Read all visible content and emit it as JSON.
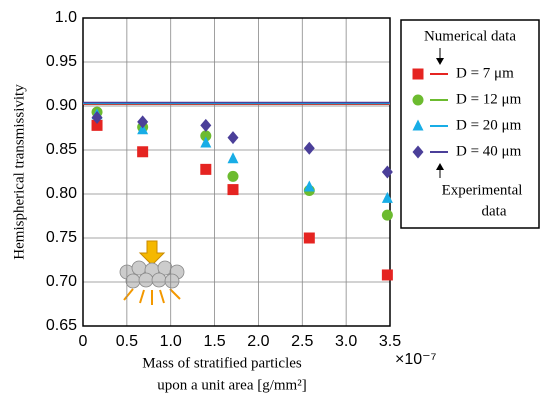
{
  "chart_data": {
    "type": "scatter",
    "x_label": [
      "Mass of stratified particles",
      "upon a unit area [g/mm²]"
    ],
    "y_label": "Hemispherical transmissivity",
    "x_multiplier": "×10⁻⁷",
    "xlim": [
      0,
      3.5
    ],
    "ylim": [
      0.65,
      1.0
    ],
    "xticks": [
      0,
      0.5,
      {
        "value": 1,
        "label": "1.0"
      },
      1.5,
      {
        "value": 2,
        "label": "2.0"
      },
      2.5,
      {
        "value": 3,
        "label": "3.0"
      },
      3.5
    ],
    "yticks": [
      0.65,
      {
        "value": 0.7,
        "label": "0.70"
      },
      0.75,
      {
        "value": 0.8,
        "label": "0.80"
      },
      0.85,
      {
        "value": 0.9,
        "label": "0.90"
      },
      0.95,
      {
        "value": 1,
        "label": "1.0"
      }
    ],
    "grid": true,
    "legend_position": "right",
    "legend_numerical_label": "Numerical data",
    "legend_experimental_label": [
      "Experimental",
      "data"
    ],
    "x": [
      0.16,
      0.68,
      1.4,
      1.71,
      2.58,
      3.47
    ],
    "line_x": [
      0,
      3.5
    ],
    "series": [
      {
        "name": "D = 7 μm",
        "color": "#e52421",
        "marker": "square",
        "values": [
          0.878,
          0.848,
          0.828,
          0.805,
          0.75,
          0.708
        ],
        "line_values": [
          0.902,
          0.902
        ]
      },
      {
        "name": "D = 12 μm",
        "color": "#6cbb2f",
        "marker": "circle",
        "values": [
          0.893,
          0.876,
          0.866,
          0.82,
          0.804,
          0.776
        ],
        "line_values": [
          0.903,
          0.903
        ]
      },
      {
        "name": "D = 20 μm",
        "color": "#18ade6",
        "marker": "triangle",
        "values": [
          0.89,
          0.873,
          0.858,
          0.84,
          0.808,
          0.795
        ],
        "line_values": [
          0.903,
          0.903
        ]
      },
      {
        "name": "D = 40 μm",
        "color": "#4b3f99",
        "marker": "diamond",
        "values": [
          0.887,
          0.882,
          0.878,
          0.864,
          0.852,
          0.825
        ],
        "line_values": [
          0.904,
          0.904
        ]
      }
    ]
  }
}
